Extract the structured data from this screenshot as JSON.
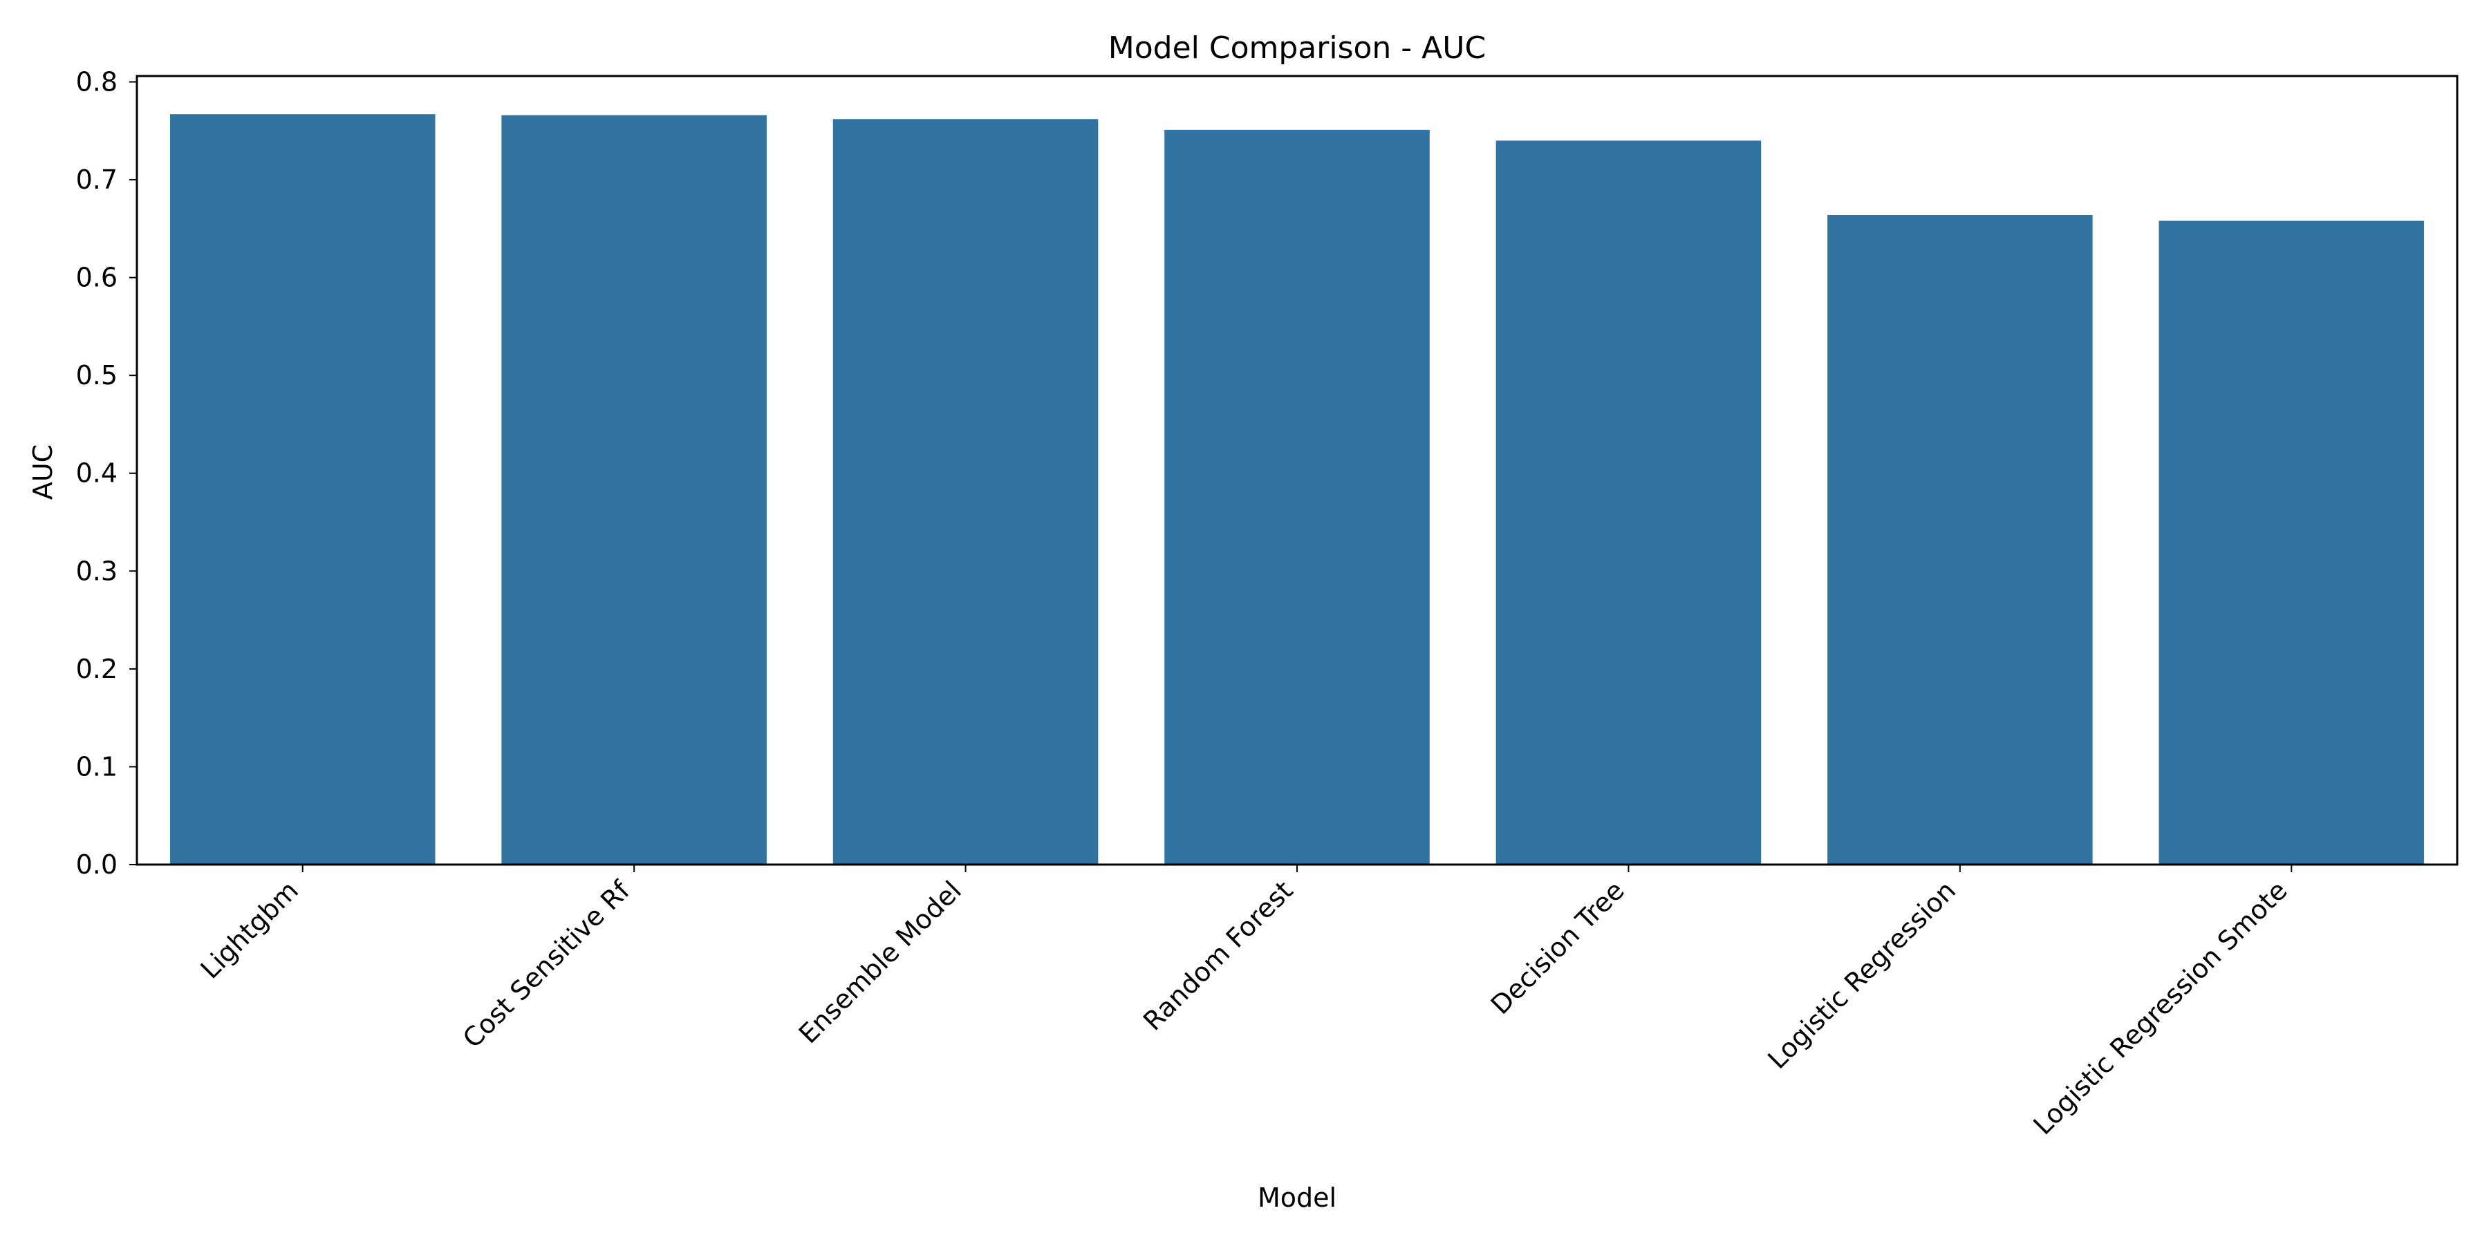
{
  "chart_data": {
    "type": "bar",
    "title": "Model Comparison - AUC",
    "xlabel": "Model",
    "ylabel": "AUC",
    "categories": [
      "Lightgbm",
      "Cost Sensitive Rf",
      "Ensemble Model",
      "Random Forest",
      "Decision Tree",
      "Logistic Regression",
      "Logistic Regression Smote"
    ],
    "values": [
      0.767,
      0.766,
      0.762,
      0.751,
      0.74,
      0.664,
      0.658
    ],
    "ylim": [
      0,
      0.806
    ],
    "yticks": [
      "0.0",
      "0.1",
      "0.2",
      "0.3",
      "0.4",
      "0.5",
      "0.6",
      "0.7",
      "0.8"
    ],
    "bar_color": "#3274a1",
    "grid": false,
    "legend": "none"
  }
}
